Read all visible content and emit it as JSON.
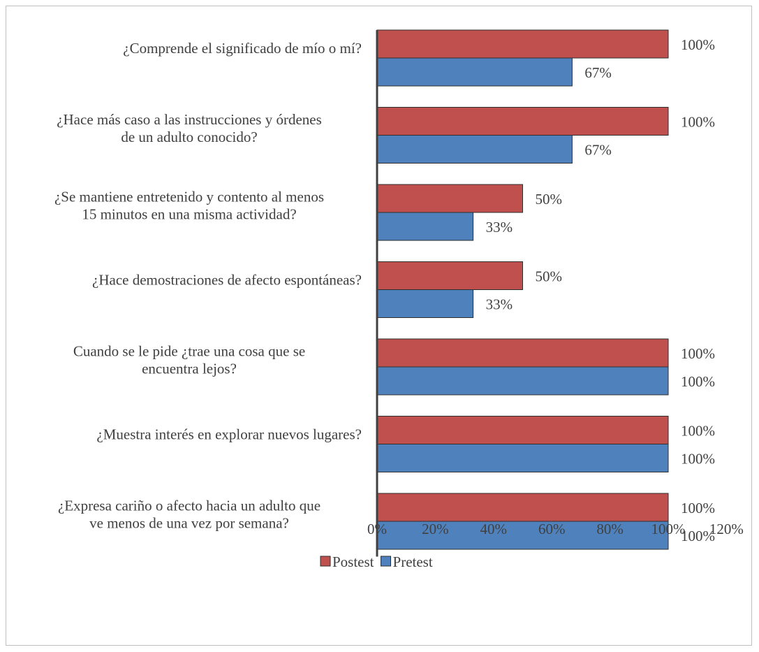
{
  "chart_data": {
    "type": "bar",
    "orientation": "horizontal",
    "categories": [
      [
        "¿Comprende el significado de mío o mí?"
      ],
      [
        "¿Hace más caso a las instrucciones y órdenes",
        "de un adulto conocido?"
      ],
      [
        "¿Se mantiene entretenido y contento al menos",
        "15 minutos en una misma actividad?"
      ],
      [
        "¿Hace demostraciones de afecto espontáneas?"
      ],
      [
        "Cuando se le pide ¿trae una cosa que se",
        "encuentra lejos?"
      ],
      [
        "¿Muestra interés en explorar nuevos lugares?"
      ],
      [
        "¿Expresa cariño o afecto hacia un adulto que",
        "ve menos de una vez por semana?"
      ]
    ],
    "series": [
      {
        "name": "Postest",
        "color": "#c0504d",
        "values": [
          100,
          100,
          50,
          50,
          100,
          100,
          100
        ],
        "labels": [
          "100%",
          "100%",
          "50%",
          "50%",
          "100%",
          "100%",
          "100%"
        ]
      },
      {
        "name": "Pretest",
        "color": "#4f81bd",
        "values": [
          67,
          67,
          33,
          33,
          100,
          100,
          100
        ],
        "labels": [
          "67%",
          "67%",
          "33%",
          "33%",
          "100%",
          "100%",
          "100%"
        ]
      }
    ],
    "xlim": [
      0,
      120
    ],
    "xticks": [
      "0%",
      "20%",
      "40%",
      "60%",
      "80%",
      "100%",
      "120%"
    ],
    "grid": false,
    "legend": "bottom",
    "xlabel": "",
    "ylabel": ""
  }
}
